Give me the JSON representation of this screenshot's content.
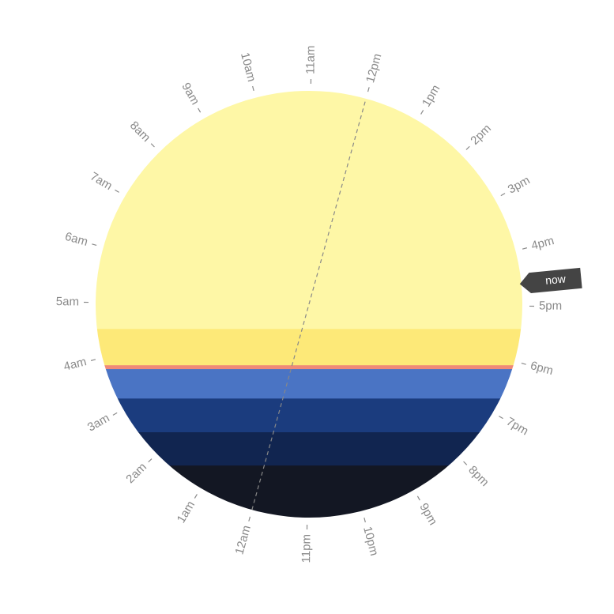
{
  "clock": {
    "hour_labels": [
      "12am",
      "1am",
      "2am",
      "3am",
      "4am",
      "5am",
      "6am",
      "7am",
      "8am",
      "9am",
      "10am",
      "11am",
      "12pm",
      "1pm",
      "2pm",
      "3pm",
      "4pm",
      "5pm",
      "6pm",
      "7pm",
      "8pm",
      "9pm",
      "10pm",
      "11pm"
    ],
    "now_label": "now",
    "now_time_hours": 16.6,
    "noon_midnight_line": true,
    "bands": [
      {
        "name": "day",
        "color": "#fef7a6",
        "until_fraction": 0.558
      },
      {
        "name": "golden-hour",
        "color": "#fde978",
        "until_fraction": 0.643
      },
      {
        "name": "sunset-edge",
        "color": "#ef8a78",
        "until_fraction": 0.652
      },
      {
        "name": "civil-twilight",
        "color": "#4a74c4",
        "until_fraction": 0.721
      },
      {
        "name": "nautical-twilight",
        "color": "#1b3c7e",
        "until_fraction": 0.8
      },
      {
        "name": "astronomical-twilight",
        "color": "#112550",
        "until_fraction": 0.878
      },
      {
        "name": "night",
        "color": "#131723",
        "until_fraction": 1.0
      }
    ],
    "colors": {
      "tick": "#8a8a8a",
      "now_marker": "#444444",
      "divider": "#888888"
    }
  }
}
